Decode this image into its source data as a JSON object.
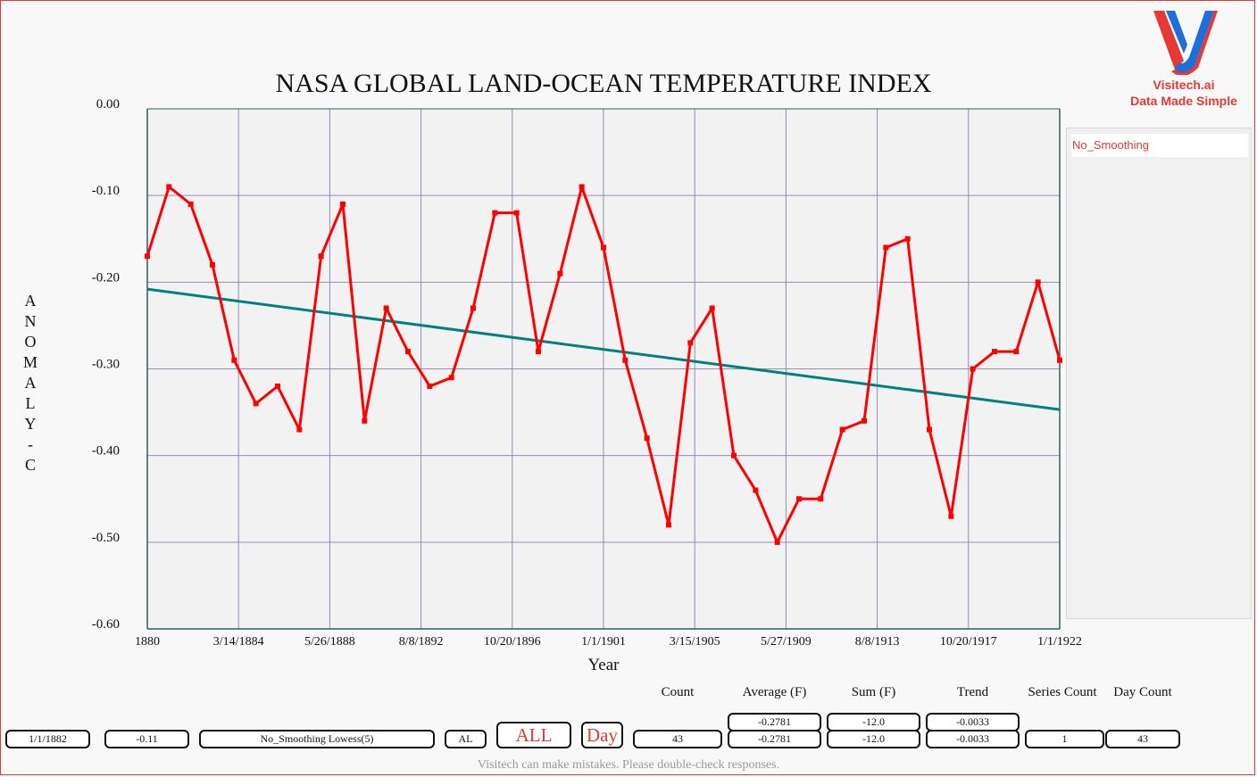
{
  "header": {
    "title": "NASA GLOBAL LAND-OCEAN TEMPERATURE INDEX"
  },
  "logo": {
    "line1": "Visitech.ai",
    "line2": "Data Made Simple",
    "colors": {
      "red": "#e53935",
      "blue": "#1e6fd9"
    }
  },
  "legend": {
    "items": [
      {
        "label": "No_Smoothing",
        "color": "#ff0000"
      }
    ]
  },
  "chart_data": {
    "type": "line",
    "title": "NASA GLOBAL LAND-OCEAN TEMPERATURE INDEX",
    "xlabel": "Year",
    "ylabel": "ANOMALY - C",
    "ylabel_letters": [
      "A",
      "N",
      "O",
      "M",
      "A",
      "L",
      "Y",
      "-",
      "C"
    ],
    "xlim": [
      1880,
      1922
    ],
    "ylim": [
      -0.6,
      0.0
    ],
    "grid": true,
    "legend_position": "right",
    "y_ticks": [
      "0.00",
      "-0.10",
      "-0.20",
      "-0.30",
      "-0.40",
      "-0.50",
      "-0.60"
    ],
    "y_tick_values": [
      0.0,
      -0.1,
      -0.2,
      -0.3,
      -0.4,
      -0.5,
      -0.6
    ],
    "x_ticks": [
      "1880",
      "3/14/1884",
      "5/26/1888",
      "8/8/1892",
      "10/20/1896",
      "1/1/1901",
      "3/15/1905",
      "5/27/1909",
      "8/8/1913",
      "10/20/1917",
      "1/1/1922"
    ],
    "x_tick_values": [
      1880,
      1884.2,
      1888.4,
      1892.6,
      1896.8,
      1901,
      1905.2,
      1909.4,
      1913.6,
      1917.8,
      1922
    ],
    "x": [
      1880,
      1881,
      1882,
      1883,
      1884,
      1885,
      1886,
      1887,
      1888,
      1889,
      1890,
      1891,
      1892,
      1893,
      1894,
      1895,
      1896,
      1897,
      1898,
      1899,
      1900,
      1901,
      1902,
      1903,
      1904,
      1905,
      1906,
      1907,
      1908,
      1909,
      1910,
      1911,
      1912,
      1913,
      1914,
      1915,
      1916,
      1917,
      1918,
      1919,
      1920,
      1921,
      1922
    ],
    "series": [
      {
        "name": "No_Smoothing",
        "color": "#ff0000",
        "values": [
          -0.17,
          -0.09,
          -0.11,
          -0.18,
          -0.29,
          -0.34,
          -0.32,
          -0.37,
          -0.17,
          -0.11,
          -0.36,
          -0.23,
          -0.28,
          -0.32,
          -0.31,
          -0.23,
          -0.12,
          -0.12,
          -0.28,
          -0.19,
          -0.09,
          -0.16,
          -0.29,
          -0.38,
          -0.48,
          -0.27,
          -0.23,
          -0.4,
          -0.44,
          -0.5,
          -0.45,
          -0.45,
          -0.37,
          -0.36,
          -0.16,
          -0.15,
          -0.37,
          -0.47,
          -0.3,
          -0.28,
          -0.28,
          -0.2,
          -0.29
        ]
      },
      {
        "name": "Trend",
        "color": "#008080",
        "x": [
          1880,
          1922
        ],
        "values": [
          -0.208,
          -0.347
        ]
      }
    ]
  },
  "controls": {
    "date_value": "1/1/1882",
    "point_value": "-0.11",
    "smoothing_value": "No_Smoothing Lowess(5)",
    "al_label": "AL",
    "all_button": "ALL",
    "day_button": "Day"
  },
  "stats": {
    "headers": {
      "count": "Count",
      "average": "Average (F)",
      "sum": "Sum (F)",
      "trend": "Trend",
      "series_count": "Series Count",
      "day_count": "Day Count"
    },
    "row1": {
      "average": "-0.2781",
      "sum": "-12.0",
      "trend": "-0.0033"
    },
    "row2": {
      "count": "43",
      "average": "-0.2781",
      "sum": "-12.0",
      "trend": "-0.0033",
      "series_count": "1",
      "day_count": "43"
    }
  },
  "footer": {
    "disclaimer": "Visitech can make mistakes. Please double-check responses."
  }
}
